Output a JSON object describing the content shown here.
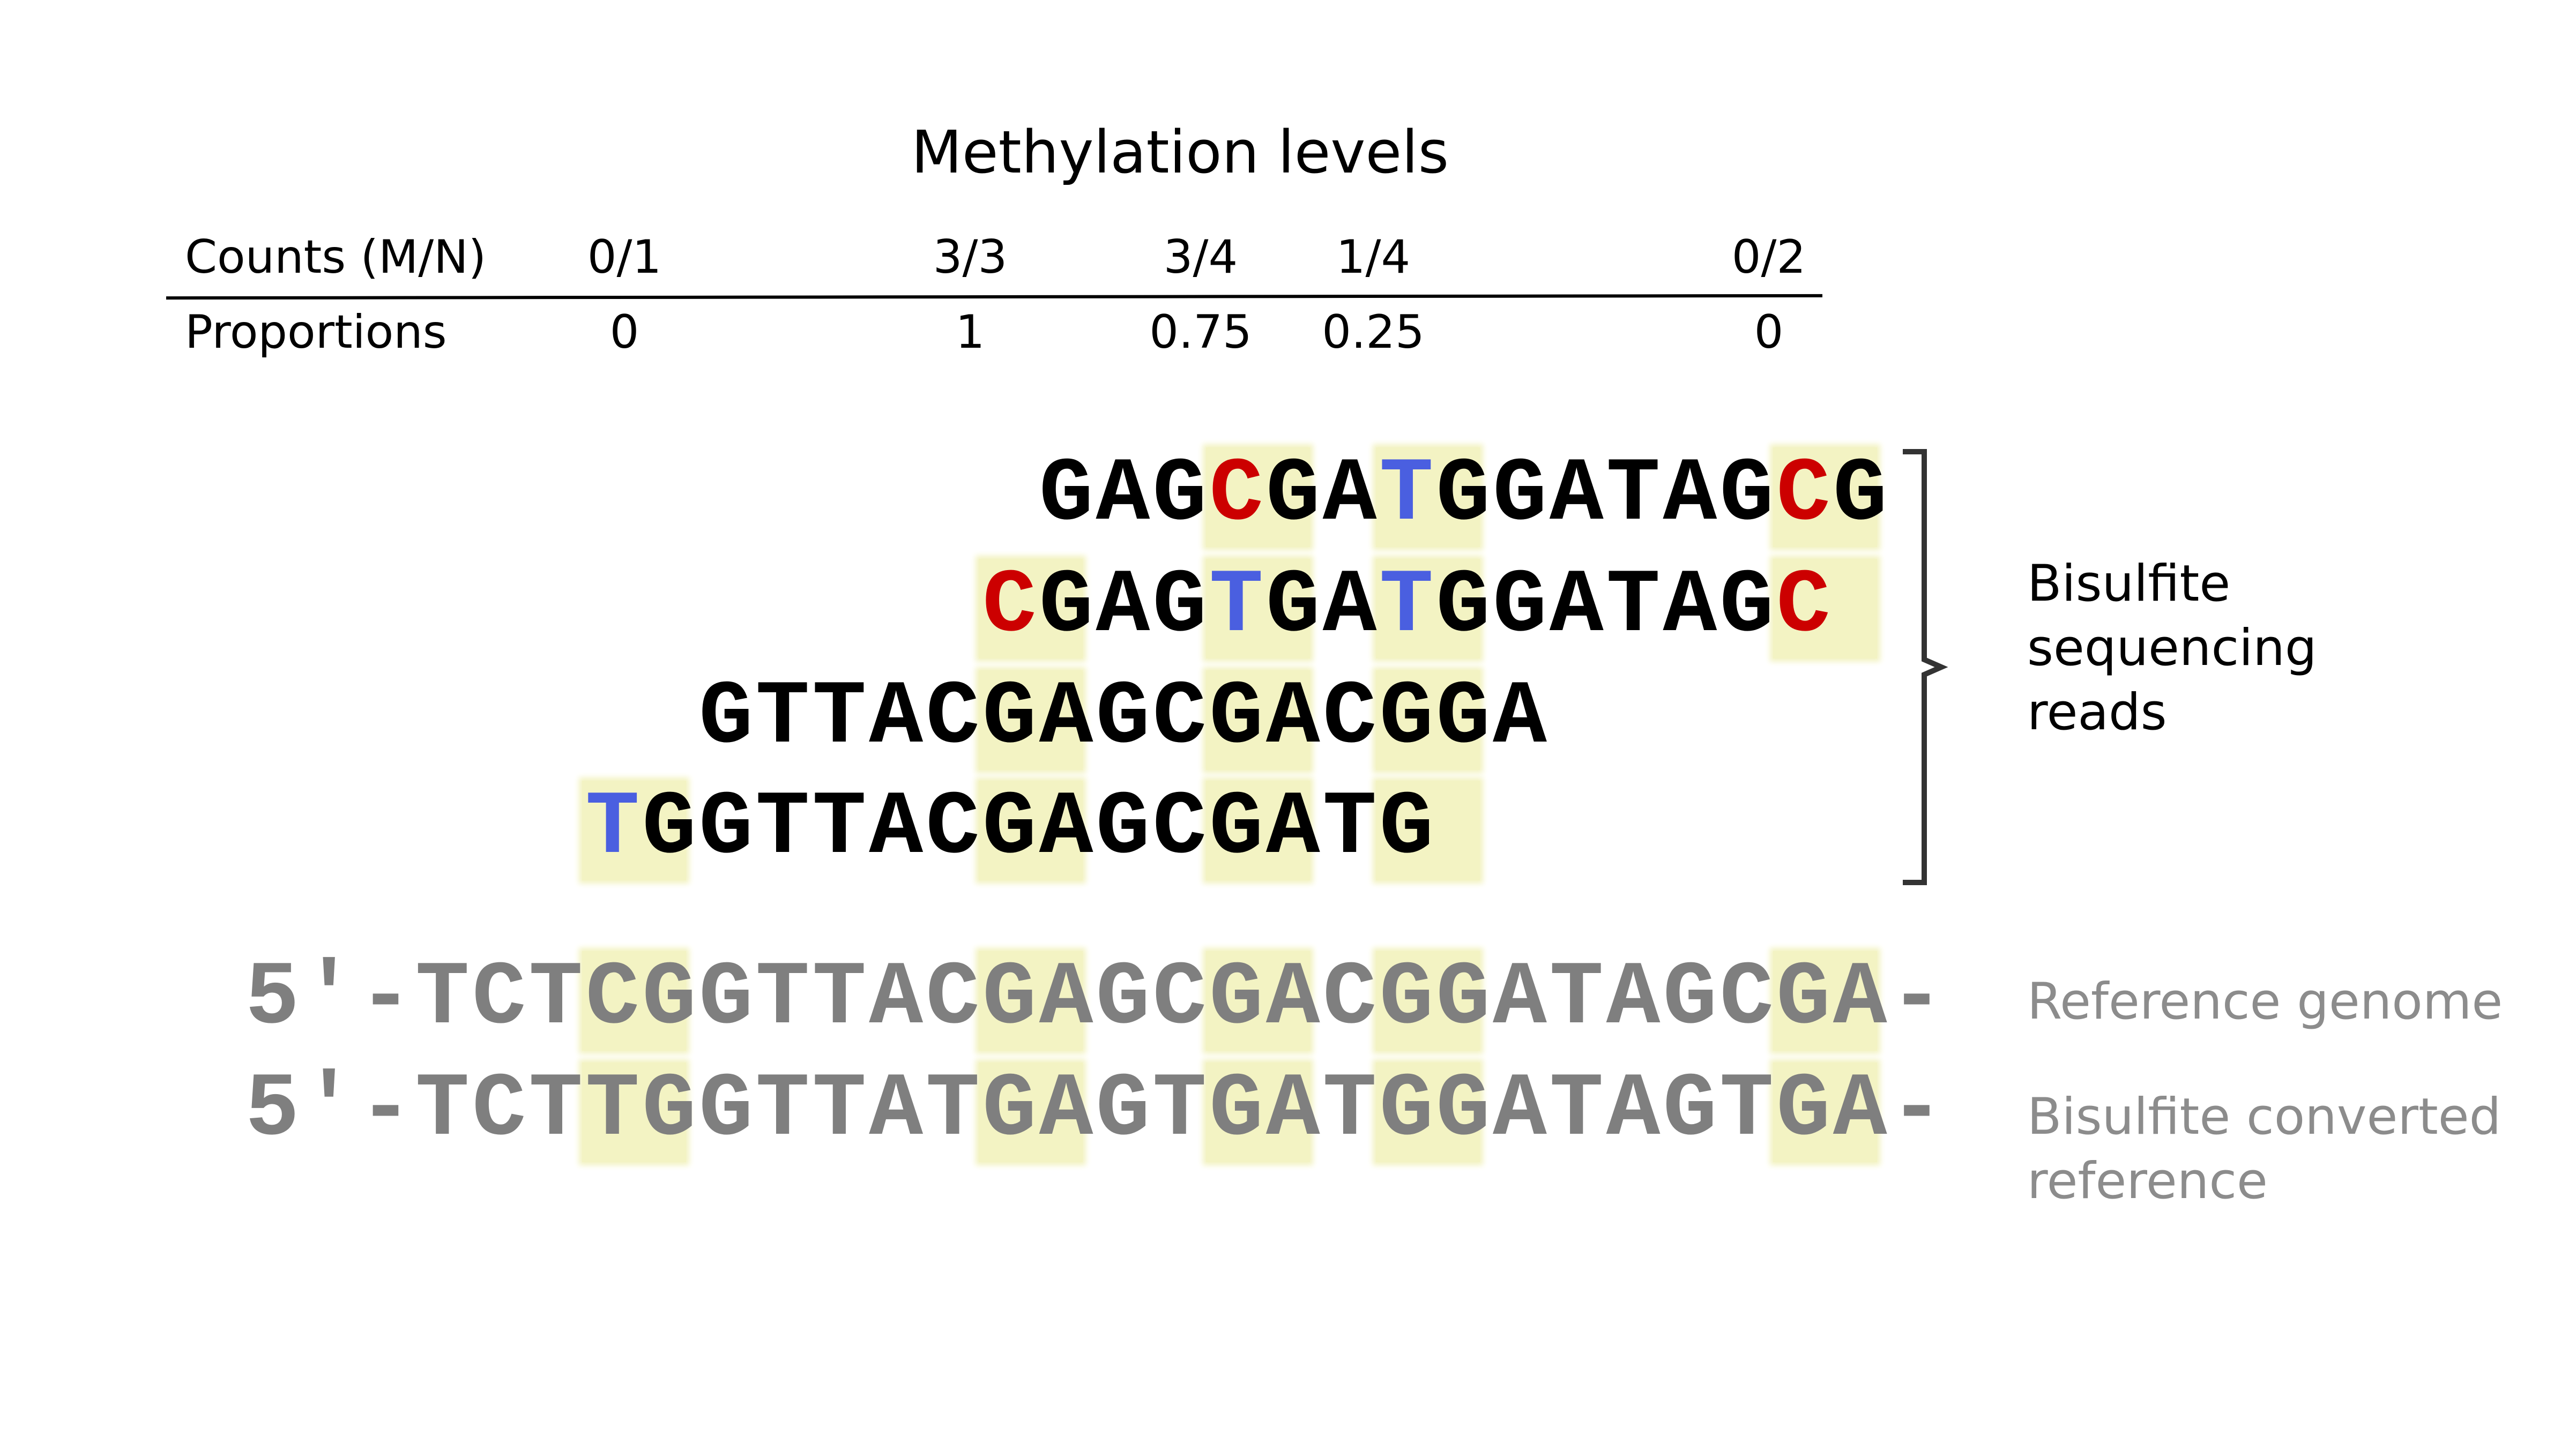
{
  "title": "Methylation levels",
  "table": {
    "counts_label": "Counts (M/N)",
    "proportions_label": "Proportions",
    "sites": [
      {
        "count": "0/1",
        "proportion": "0"
      },
      {
        "count": "3/3",
        "proportion": "1"
      },
      {
        "count": "3/4",
        "proportion": "0.75"
      },
      {
        "count": "1/4",
        "proportion": "0.25"
      },
      {
        "count": "0/2",
        "proportion": "0"
      }
    ]
  },
  "reads": [
    {
      "offset": 14,
      "sequence": "GAGCGATGGATAGCG"
    },
    {
      "offset": 13,
      "sequence": "CGAGTGATGGATAGC"
    },
    {
      "offset": 8,
      "sequence": "GTTACGAGCGACGGA"
    },
    {
      "offset": 6,
      "sequence": "TGGTTACGAGCGATG"
    }
  ],
  "highlight_columns": [
    6,
    13,
    17,
    20,
    27
  ],
  "reference": {
    "prefix": "5′-",
    "sequence": "TCTCGGTTACGAGCGACGGATAGCGA",
    "suffix": "-"
  },
  "converted": {
    "prefix": "5′-",
    "sequence": "TCTTGGTTATGAGTGATGGATAGTGA",
    "suffix": "-"
  },
  "labels": {
    "reads": "Bisulfite sequencing reads",
    "reads_lines": [
      "Bisulfite",
      "sequencing",
      "reads"
    ],
    "reference": "Reference genome",
    "converted_lines": [
      "Bisulfite converted",
      "reference"
    ]
  },
  "colors": {
    "methylated_c": "#cc0000",
    "unmethylated_t": "#4a5fe0",
    "read_text": "#000000",
    "reference_text": "#7f7f7f",
    "highlight": "#f3f3c3",
    "reference_label": "#8c8c8c"
  }
}
